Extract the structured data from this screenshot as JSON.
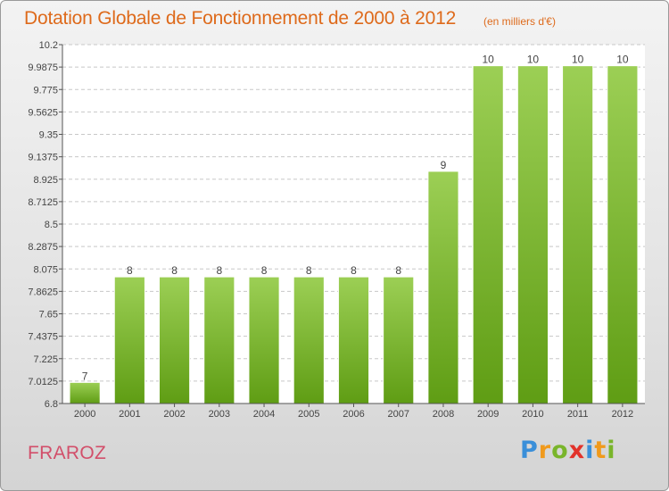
{
  "header": {
    "title": "Dotation Globale de Fonctionnement de 2000 à 2012",
    "unit": "(en milliers d'€)"
  },
  "footer": {
    "place": "FRAROZ",
    "logo_letters": [
      {
        "char": "P",
        "color": "#3a8fd9"
      },
      {
        "char": "r",
        "color": "#f09a1c"
      },
      {
        "char": "o",
        "color": "#79b52b"
      },
      {
        "char": "x",
        "color": "#e2322a"
      },
      {
        "char": "i",
        "color": "#3a8fd9"
      },
      {
        "char": "t",
        "color": "#f09a1c"
      },
      {
        "char": "i",
        "color": "#79b52b"
      }
    ]
  },
  "colors": {
    "bar_top": "#9ccf55",
    "bar_bottom": "#5f9d14",
    "grid": "#c8c8c8",
    "axis": "#555555",
    "text": "#444444"
  },
  "chart_data": {
    "type": "bar",
    "categories": [
      "2000",
      "2001",
      "2002",
      "2003",
      "2004",
      "2005",
      "2006",
      "2007",
      "2008",
      "2009",
      "2010",
      "2011",
      "2012"
    ],
    "values": [
      7,
      8,
      8,
      8,
      8,
      8,
      8,
      8,
      9,
      10,
      10,
      10,
      10
    ],
    "data_labels": [
      "7",
      "8",
      "8",
      "8",
      "8",
      "8",
      "8",
      "8",
      "9",
      "10",
      "10",
      "10",
      "10"
    ],
    "ylim": [
      6.8,
      10.2
    ],
    "yticks": [
      "6.8",
      "7.0125",
      "7.225",
      "7.4375",
      "7.65",
      "7.8625",
      "8.075",
      "8.2875",
      "8.5",
      "8.7125",
      "8.925",
      "9.1375",
      "9.35",
      "9.5625",
      "9.775",
      "9.9875",
      "10.2"
    ],
    "ytick_values": [
      6.8,
      7.0125,
      7.225,
      7.4375,
      7.65,
      7.8625,
      8.075,
      8.2875,
      8.5,
      8.7125,
      8.925,
      9.1375,
      9.35,
      9.5625,
      9.775,
      9.9875,
      10.2
    ],
    "grid": true,
    "xlabel": "",
    "ylabel": ""
  }
}
